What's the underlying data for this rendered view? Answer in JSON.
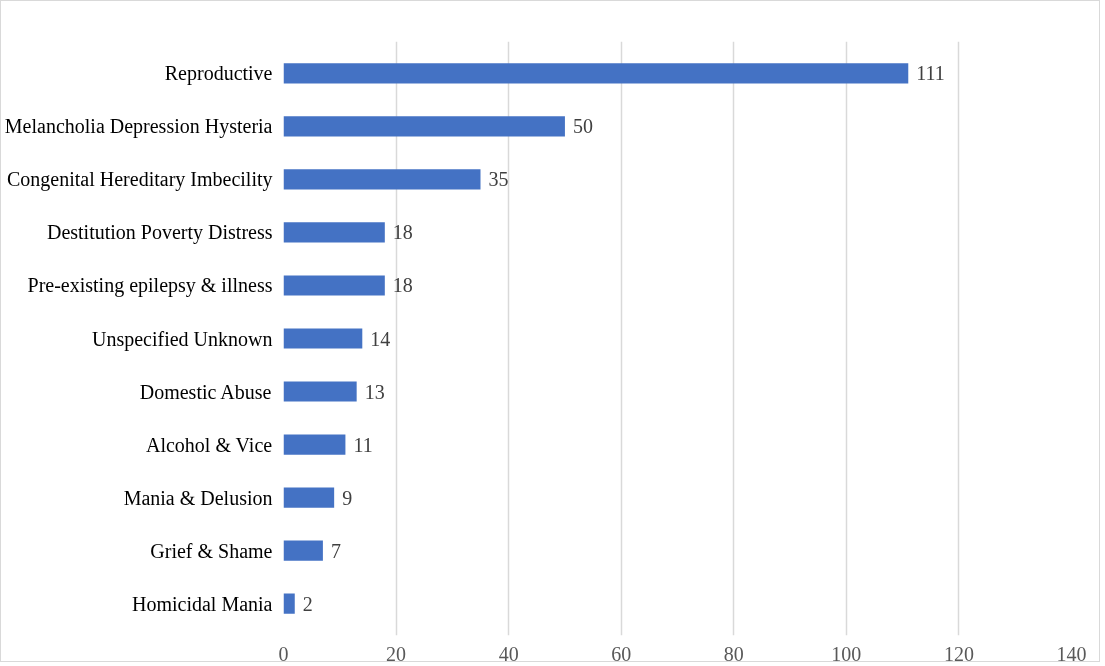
{
  "chart_data": {
    "type": "bar",
    "orientation": "horizontal",
    "categories": [
      "Reproductive",
      "Melancholia Depression Hysteria",
      "Congenital Hereditary Imbecility",
      "Destitution Poverty Distress",
      "Pre-existing epilepsy & illness",
      "Unspecified Unknown",
      "Domestic Abuse",
      "Alcohol & Vice",
      "Mania & Delusion",
      "Grief & Shame",
      "Homicidal Mania"
    ],
    "values": [
      111,
      50,
      35,
      18,
      18,
      14,
      13,
      11,
      9,
      7,
      2
    ],
    "color": "#4472c4",
    "xlim": [
      0,
      140
    ],
    "xticks": [
      0,
      20,
      40,
      60,
      80,
      100,
      120,
      140
    ],
    "grid": "x",
    "data_labels": true
  }
}
